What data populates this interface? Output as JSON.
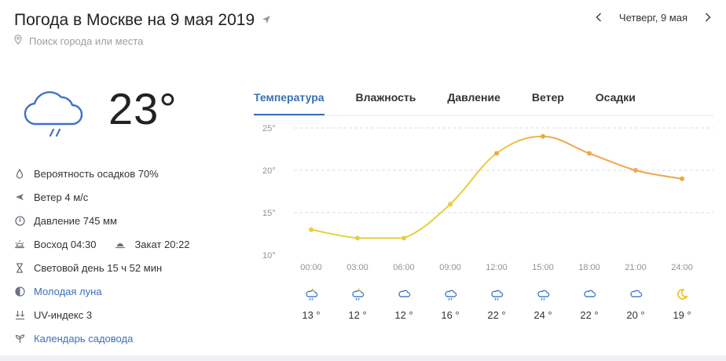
{
  "header": {
    "title": "Погода в Москве на 9 мая 2019",
    "search_placeholder": "Поиск города или места",
    "date_label": "Четверг, 9 мая"
  },
  "current": {
    "temperature": "23°",
    "icon": "cloud-rain-icon"
  },
  "details": {
    "precip": "Вероятность осадков 70%",
    "wind": "Ветер 4 м/с",
    "pressure": "Давление 745 мм",
    "sunrise": "Восход 04:30",
    "sunset": "Закат 20:22",
    "daylight": "Световой день 15 ч 52 мин",
    "moon": "Молодая луна",
    "uv": "UV-индекс 3",
    "garden": "Календарь садовода"
  },
  "tabs": [
    {
      "label": "Температура",
      "active": true
    },
    {
      "label": "Влажность",
      "active": false
    },
    {
      "label": "Давление",
      "active": false
    },
    {
      "label": "Ветер",
      "active": false
    },
    {
      "label": "Осадки",
      "active": false
    }
  ],
  "colors": {
    "accent": "#3a6fb5",
    "line_start": "#e6cf3c",
    "line_end": "#f0a64a",
    "icon_blue": "#4a7fc8",
    "sun": "#f2b925"
  },
  "chart_data": {
    "type": "line",
    "categories": [
      "00:00",
      "03:00",
      "06:00",
      "09:00",
      "12:00",
      "15:00",
      "18:00",
      "21:00",
      "24:00"
    ],
    "values": [
      13,
      12,
      12,
      16,
      22,
      24,
      22,
      20,
      19
    ],
    "ylim": [
      10,
      25
    ],
    "yticks": [
      "10°",
      "15°",
      "20°",
      "25°"
    ],
    "grid": true
  },
  "hourly": [
    {
      "time": "00:00",
      "temp": "13 °",
      "icon": "cloud-rain-night-icon"
    },
    {
      "time": "03:00",
      "temp": "12 °",
      "icon": "cloud-rain-night-icon"
    },
    {
      "time": "06:00",
      "temp": "12 °",
      "icon": "cloud-icon"
    },
    {
      "time": "09:00",
      "temp": "16 °",
      "icon": "cloud-rain-icon"
    },
    {
      "time": "12:00",
      "temp": "22 °",
      "icon": "cloud-rain-icon"
    },
    {
      "time": "15:00",
      "temp": "24 °",
      "icon": "cloud-rain-icon"
    },
    {
      "time": "18:00",
      "temp": "22 °",
      "icon": "cloud-icon"
    },
    {
      "time": "21:00",
      "temp": "20 °",
      "icon": "cloud-icon"
    },
    {
      "time": "24:00",
      "temp": "19 °",
      "icon": "moon-icon"
    }
  ]
}
